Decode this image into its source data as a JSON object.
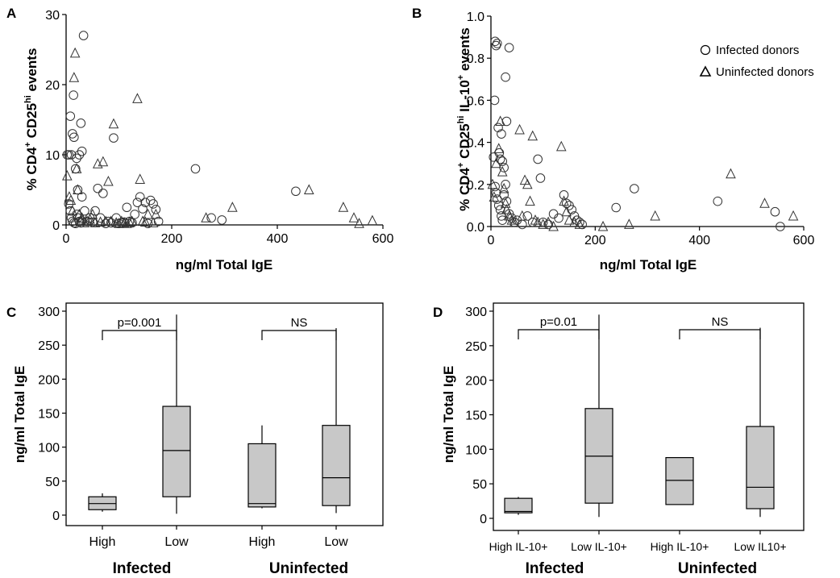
{
  "chart_data": [
    {
      "panel": "A",
      "type": "scatter",
      "ylabel_parts": {
        "pre": "% CD4",
        "sup1": "+",
        "mid": " CD25",
        "sup2": "hi",
        "post": " events"
      },
      "xlabel": "ng/ml Total IgE",
      "xlim": [
        0,
        600
      ],
      "ylim": [
        0,
        30
      ],
      "xticks": [
        0,
        200,
        400,
        600
      ],
      "yticks": [
        0,
        10,
        20,
        30
      ],
      "series": [
        {
          "name": "Infected donors",
          "marker": "circle",
          "points": [
            [
              2,
              10
            ],
            [
              5,
              10
            ],
            [
              8,
              15.5
            ],
            [
              10,
              10
            ],
            [
              12,
              13
            ],
            [
              14,
              18.5
            ],
            [
              15,
              12.5
            ],
            [
              18,
              8
            ],
            [
              20,
              9.5
            ],
            [
              22,
              5
            ],
            [
              25,
              10
            ],
            [
              28,
              14.5
            ],
            [
              30,
              10.5
            ],
            [
              33,
              27
            ],
            [
              5,
              3
            ],
            [
              8,
              2
            ],
            [
              10,
              1
            ],
            [
              12,
              0.5
            ],
            [
              15,
              0.3
            ],
            [
              18,
              0.2
            ],
            [
              20,
              1.5
            ],
            [
              22,
              1
            ],
            [
              25,
              0.5
            ],
            [
              28,
              0.3
            ],
            [
              30,
              4
            ],
            [
              35,
              2
            ],
            [
              40,
              0.5
            ],
            [
              45,
              1
            ],
            [
              50,
              0.4
            ],
            [
              55,
              2
            ],
            [
              60,
              5.2
            ],
            [
              65,
              1
            ],
            [
              70,
              4.5
            ],
            [
              75,
              0.2
            ],
            [
              80,
              0.5
            ],
            [
              85,
              0.3
            ],
            [
              90,
              12.4
            ],
            [
              95,
              1
            ],
            [
              100,
              0.2
            ],
            [
              105,
              0.3
            ],
            [
              110,
              0.4
            ],
            [
              115,
              2.5
            ],
            [
              120,
              0.5
            ],
            [
              125,
              0.3
            ],
            [
              130,
              1.5
            ],
            [
              135,
              3.2
            ],
            [
              140,
              4
            ],
            [
              145,
              2.3
            ],
            [
              150,
              3.2
            ],
            [
              155,
              0.2
            ],
            [
              160,
              3.5
            ],
            [
              165,
              3
            ],
            [
              170,
              2.2
            ],
            [
              175,
              0.5
            ],
            [
              245,
              8
            ],
            [
              275,
              1
            ],
            [
              295,
              0.7
            ],
            [
              435,
              4.8
            ]
          ]
        },
        {
          "name": "Uninfected donors",
          "marker": "triangle",
          "points": [
            [
              2,
              7
            ],
            [
              6,
              4
            ],
            [
              9,
              3.5
            ],
            [
              12,
              2
            ],
            [
              15,
              21
            ],
            [
              17,
              24.5
            ],
            [
              20,
              8
            ],
            [
              22,
              5
            ],
            [
              25,
              1.5
            ],
            [
              28,
              0.5
            ],
            [
              30,
              1
            ],
            [
              35,
              0.3
            ],
            [
              40,
              0.5
            ],
            [
              45,
              0.8
            ],
            [
              50,
              1.5
            ],
            [
              55,
              0.3
            ],
            [
              60,
              8.7
            ],
            [
              65,
              0.4
            ],
            [
              70,
              9
            ],
            [
              75,
              0.5
            ],
            [
              80,
              6.2
            ],
            [
              85,
              0.5
            ],
            [
              90,
              14.4
            ],
            [
              95,
              0.3
            ],
            [
              100,
              0.2
            ],
            [
              105,
              0.5
            ],
            [
              110,
              0.3
            ],
            [
              115,
              0.2
            ],
            [
              120,
              0.4
            ],
            [
              125,
              0.5
            ],
            [
              135,
              18
            ],
            [
              140,
              6.5
            ],
            [
              145,
              0.5
            ],
            [
              150,
              0.4
            ],
            [
              155,
              1.5
            ],
            [
              165,
              0.3
            ],
            [
              170,
              1.5
            ],
            [
              265,
              1
            ],
            [
              315,
              2.5
            ],
            [
              460,
              5
            ],
            [
              525,
              2.5
            ],
            [
              545,
              1
            ],
            [
              555,
              0.2
            ],
            [
              580,
              0.6
            ]
          ]
        }
      ]
    },
    {
      "panel": "B",
      "type": "scatter",
      "ylabel_parts": {
        "pre": "% CD4",
        "sup1": "+",
        "mid": " CD25",
        "sup2": "hi",
        "post": " IL-10",
        "sup3": "+",
        "post2": " events"
      },
      "xlabel": "ng/ml Total IgE",
      "xlim": [
        0,
        600
      ],
      "ylim": [
        0,
        1.0
      ],
      "xticks": [
        0,
        200,
        400,
        600
      ],
      "yticks": [
        0.0,
        0.2,
        0.4,
        0.6,
        0.8,
        1.0
      ],
      "ytick_labels": [
        "0.0",
        "0.2",
        "0.4",
        "0.6",
        "0.8",
        "1.0"
      ],
      "legend": {
        "position": "top-right",
        "entries": [
          "Infected donors",
          "Uninfected donors"
        ]
      },
      "series": [
        {
          "name": "Infected donors",
          "marker": "circle",
          "points": [
            [
              5,
              0.33
            ],
            [
              7,
              0.6
            ],
            [
              8,
              0.88
            ],
            [
              10,
              0.86
            ],
            [
              12,
              0.87
            ],
            [
              14,
              0.47
            ],
            [
              16,
              0.35
            ],
            [
              18,
              0.32
            ],
            [
              20,
              0.44
            ],
            [
              22,
              0.31
            ],
            [
              25,
              0.28
            ],
            [
              28,
              0.71
            ],
            [
              30,
              0.5
            ],
            [
              35,
              0.85
            ],
            [
              8,
              0.19
            ],
            [
              10,
              0.16
            ],
            [
              12,
              0.13
            ],
            [
              15,
              0.1
            ],
            [
              18,
              0.08
            ],
            [
              20,
              0.05
            ],
            [
              22,
              0.03
            ],
            [
              25,
              0.15
            ],
            [
              28,
              0.2
            ],
            [
              30,
              0.12
            ],
            [
              35,
              0.06
            ],
            [
              40,
              0.04
            ],
            [
              45,
              0.02
            ],
            [
              50,
              0.03
            ],
            [
              60,
              0.01
            ],
            [
              70,
              0.05
            ],
            [
              80,
              0.02
            ],
            [
              90,
              0.32
            ],
            [
              95,
              0.23
            ],
            [
              100,
              0.02
            ],
            [
              110,
              0.01
            ],
            [
              120,
              0.06
            ],
            [
              130,
              0.04
            ],
            [
              140,
              0.15
            ],
            [
              145,
              0.11
            ],
            [
              150,
              0.1
            ],
            [
              155,
              0.08
            ],
            [
              160,
              0.05
            ],
            [
              165,
              0.03
            ],
            [
              170,
              0.02
            ],
            [
              175,
              0.01
            ],
            [
              240,
              0.09
            ],
            [
              275,
              0.18
            ],
            [
              435,
              0.12
            ],
            [
              545,
              0.07
            ],
            [
              555,
              0.0
            ]
          ]
        },
        {
          "name": "Uninfected donors",
          "marker": "triangle",
          "points": [
            [
              3,
              0.2
            ],
            [
              6,
              0.14
            ],
            [
              10,
              0.3
            ],
            [
              15,
              0.37
            ],
            [
              18,
              0.5
            ],
            [
              22,
              0.26
            ],
            [
              25,
              0.18
            ],
            [
              28,
              0.11
            ],
            [
              30,
              0.08
            ],
            [
              35,
              0.05
            ],
            [
              40,
              0.03
            ],
            [
              45,
              0.02
            ],
            [
              55,
              0.46
            ],
            [
              60,
              0.05
            ],
            [
              65,
              0.22
            ],
            [
              70,
              0.2
            ],
            [
              75,
              0.12
            ],
            [
              80,
              0.43
            ],
            [
              85,
              0.03
            ],
            [
              90,
              0.02
            ],
            [
              100,
              0.01
            ],
            [
              110,
              0.02
            ],
            [
              120,
              0.0
            ],
            [
              135,
              0.38
            ],
            [
              140,
              0.12
            ],
            [
              145,
              0.07
            ],
            [
              150,
              0.03
            ],
            [
              160,
              0.02
            ],
            [
              170,
              0.01
            ],
            [
              215,
              0.0
            ],
            [
              265,
              0.01
            ],
            [
              315,
              0.05
            ],
            [
              460,
              0.25
            ],
            [
              525,
              0.11
            ],
            [
              580,
              0.05
            ]
          ]
        }
      ]
    },
    {
      "panel": "C",
      "type": "box",
      "ylabel": "ng/ml Total IgE",
      "ylim": [
        0,
        300
      ],
      "yticks": [
        0,
        50,
        100,
        150,
        200,
        250,
        300
      ],
      "categories": [
        "High",
        "Low",
        "High",
        "Low"
      ],
      "groups": [
        "Infected",
        "Uninfected"
      ],
      "boxes": [
        {
          "min": 5,
          "q1": 8,
          "median": 17,
          "q3": 27,
          "max": 32
        },
        {
          "min": 2,
          "q1": 27,
          "median": 95,
          "q3": 160,
          "max": 295
        },
        {
          "min": 10,
          "q1": 12,
          "median": 17,
          "q3": 105,
          "max": 132
        },
        {
          "min": 3,
          "q1": 14,
          "median": 55,
          "q3": 132,
          "max": 275
        }
      ],
      "brackets": [
        {
          "from": 0,
          "to": 1,
          "label": "p=0.001"
        },
        {
          "from": 2,
          "to": 3,
          "label": "NS"
        }
      ]
    },
    {
      "panel": "D",
      "type": "box",
      "ylabel": "ng/ml Total IgE",
      "ylim": [
        0,
        300
      ],
      "yticks": [
        0,
        50,
        100,
        150,
        200,
        250,
        300
      ],
      "categories": [
        "High IL-10+",
        "Low IL-10+",
        "High IL-10+",
        "Low IL10+"
      ],
      "groups": [
        "Infected",
        "Uninfected"
      ],
      "boxes": [
        {
          "min": 5,
          "q1": 8,
          "median": 10,
          "q3": 29,
          "max": 31
        },
        {
          "min": 2,
          "q1": 22,
          "median": 90,
          "q3": 159,
          "max": 295
        },
        {
          "min": 20,
          "q1": 20,
          "median": 55,
          "q3": 88,
          "max": 88
        },
        {
          "min": 2,
          "q1": 14,
          "median": 45,
          "q3": 133,
          "max": 276
        }
      ],
      "brackets": [
        {
          "from": 0,
          "to": 1,
          "label": "p=0.01"
        },
        {
          "from": 2,
          "to": 3,
          "label": "NS"
        }
      ]
    }
  ]
}
